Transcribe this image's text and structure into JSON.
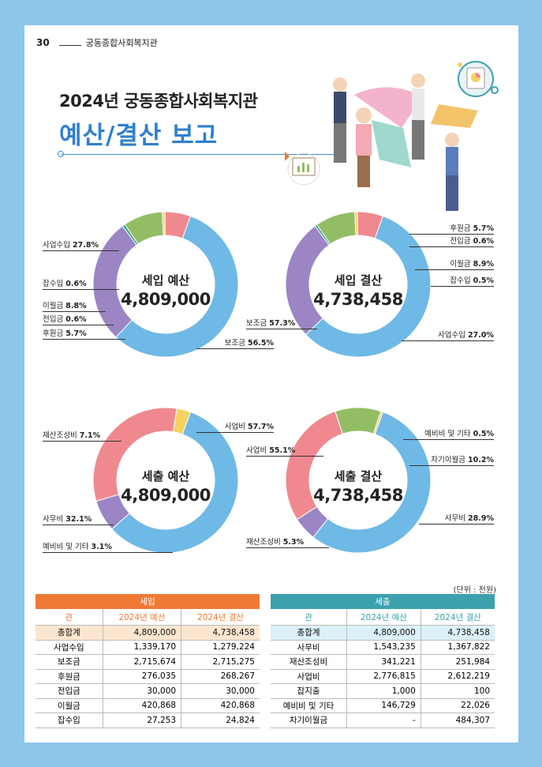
{
  "header": {
    "page_number": "30",
    "org": "궁동종합사회복지관"
  },
  "title": {
    "line1": "2024년 궁동종합사회복지관",
    "line2": "예산/결산 보고"
  },
  "colors": {
    "blue": "#6fb9e6",
    "purple": "#9b85c4",
    "green": "#93bd65",
    "yellow": "#f5d163",
    "pink": "#f0898f",
    "teal": "#2b9e8c",
    "orange": "#ef7a36",
    "teal_header": "#3ca1ad"
  },
  "charts": {
    "income_budget": {
      "title": "세입 예산",
      "value": "4,809,000",
      "labels": [
        {
          "name": "사업수입",
          "pct": "27.8%"
        },
        {
          "name": "잡수입",
          "pct": "0.6%"
        },
        {
          "name": "이월금",
          "pct": "8.8%"
        },
        {
          "name": "전입금",
          "pct": "0.6%"
        },
        {
          "name": "후원금",
          "pct": "5.7%"
        },
        {
          "name": "보조금",
          "pct": "56.5%"
        }
      ]
    },
    "income_settle": {
      "title": "세입 결산",
      "value": "4,738,458",
      "labels": [
        {
          "name": "후원금",
          "pct": "5.7%"
        },
        {
          "name": "전입금",
          "pct": "0.6%"
        },
        {
          "name": "이월금",
          "pct": "8.9%"
        },
        {
          "name": "잡수입",
          "pct": "0.5%"
        },
        {
          "name": "사업수입",
          "pct": "27.0%"
        },
        {
          "name": "보조금",
          "pct": "57.3%"
        }
      ]
    },
    "expense_budget": {
      "title": "세출 예산",
      "value": "4,809,000",
      "labels": [
        {
          "name": "재산조성비",
          "pct": "7.1%"
        },
        {
          "name": "사업비",
          "pct": "57.7%"
        },
        {
          "name": "사무비",
          "pct": "32.1%"
        },
        {
          "name": "예비비 및 기타",
          "pct": "3.1%"
        }
      ]
    },
    "expense_settle": {
      "title": "세출 결산",
      "value": "4,738,458",
      "labels": [
        {
          "name": "사업비",
          "pct": "55.1%"
        },
        {
          "name": "예비비 및 기타",
          "pct": "0.5%"
        },
        {
          "name": "차기이월금",
          "pct": "10.2%"
        },
        {
          "name": "사무비",
          "pct": "28.9%"
        },
        {
          "name": "재산조성비",
          "pct": "5.3%"
        }
      ]
    }
  },
  "chart_data": [
    {
      "type": "pie",
      "title": "세입 예산",
      "categories": [
        "보조금",
        "사업수입",
        "잡수입",
        "이월금",
        "전입금",
        "후원금"
      ],
      "values": [
        56.5,
        27.8,
        0.6,
        8.8,
        0.6,
        5.7
      ]
    },
    {
      "type": "pie",
      "title": "세입 결산",
      "categories": [
        "보조금",
        "사업수입",
        "잡수입",
        "이월금",
        "전입금",
        "후원금"
      ],
      "values": [
        57.3,
        27.0,
        0.5,
        8.9,
        0.6,
        5.7
      ]
    },
    {
      "type": "pie",
      "title": "세출 예산",
      "categories": [
        "사업비",
        "재산조성비",
        "사무비",
        "예비비 및 기타"
      ],
      "values": [
        57.7,
        7.1,
        32.1,
        3.1
      ]
    },
    {
      "type": "pie",
      "title": "세출 결산",
      "categories": [
        "사업비",
        "재산조성비",
        "사무비",
        "차기이월금",
        "예비비 및 기타"
      ],
      "values": [
        55.1,
        5.3,
        28.9,
        10.2,
        0.5
      ]
    }
  ],
  "unit": "(단위 : 천원)",
  "income_table": {
    "caption": "세입",
    "headers": [
      "관",
      "2024년 예산",
      "2024년 결산"
    ],
    "rows": [
      [
        "총합계",
        "4,809,000",
        "4,738,458"
      ],
      [
        "사업수입",
        "1,339,170",
        "1,279,224"
      ],
      [
        "보조금",
        "2,715,674",
        "2,715,275"
      ],
      [
        "후원금",
        "276,035",
        "268,267"
      ],
      [
        "전입금",
        "30,000",
        "30,000"
      ],
      [
        "이월금",
        "420,868",
        "420,868"
      ],
      [
        "잡수입",
        "27,253",
        "24,824"
      ]
    ]
  },
  "expense_table": {
    "caption": "세출",
    "headers": [
      "관",
      "2024년 예산",
      "2024년 결산"
    ],
    "rows": [
      [
        "총합계",
        "4,809,000",
        "4,738,458"
      ],
      [
        "사무비",
        "1,543,235",
        "1,367,822"
      ],
      [
        "재산조성비",
        "341,221",
        "251,984"
      ],
      [
        "사업비",
        "2,776,815",
        "2,612,219"
      ],
      [
        "잡지출",
        "1,000",
        "100"
      ],
      [
        "예비비 및 기타",
        "146,729",
        "22,026"
      ],
      [
        "차기이월금",
        "-",
        "484,307"
      ]
    ]
  }
}
